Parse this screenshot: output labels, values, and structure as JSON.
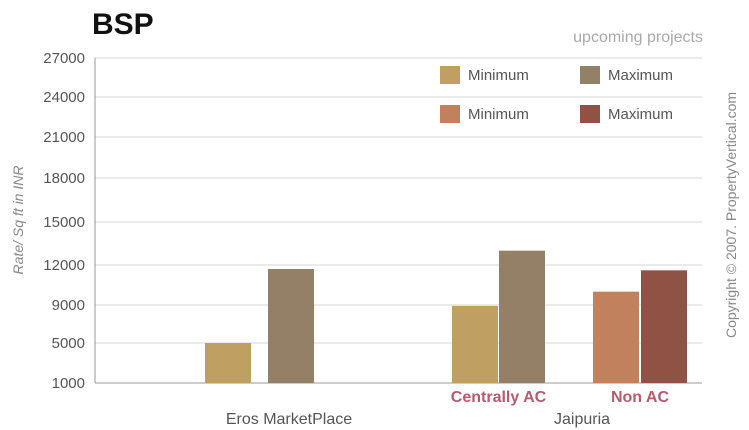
{
  "chart_data": {
    "type": "bar",
    "title": "BSP",
    "subtitle": "upcoming projects",
    "ylabel": "Rate/ Sq ft in INR",
    "copyright": "Copyright © 2007. PropertyVertical.com",
    "y_ticks": [
      "27000",
      "24000",
      "21000",
      "18000",
      "15000",
      "12000",
      "9000",
      "5000",
      "1000"
    ],
    "groups": [
      {
        "label": "Eros MarketPlace",
        "subgroups": [
          {
            "label": "",
            "color": "#c0a062",
            "bars": [
              {
                "series": "Minimum",
                "color": "#c0a062",
                "value": 5000
              },
              {
                "series": "Maximum",
                "color": "#948066",
                "value": 11700
              }
            ]
          }
        ]
      },
      {
        "label": "Jaipuria",
        "subgroups": [
          {
            "label": "Centrally AC",
            "color": "#b85a6e",
            "bars": [
              {
                "series": "Minimum",
                "color": "#c0a062",
                "value": 8900
              },
              {
                "series": "Maximum",
                "color": "#948066",
                "value": 13000
              }
            ]
          },
          {
            "label": "Non AC",
            "color": "#b85a6e",
            "bars": [
              {
                "series": "Minimum",
                "color": "#c0815c",
                "value": 10000
              },
              {
                "series": "Maximum",
                "color": "#8f5245",
                "value": 11600
              }
            ]
          }
        ]
      }
    ],
    "legend": [
      {
        "label": "Minimum",
        "color": "#c0a062"
      },
      {
        "label": "Maximum",
        "color": "#948066"
      },
      {
        "label": "Minimum",
        "color": "#c0815c"
      },
      {
        "label": "Maximum",
        "color": "#8f5245"
      }
    ],
    "legend_position": "top-right",
    "grid": true
  }
}
